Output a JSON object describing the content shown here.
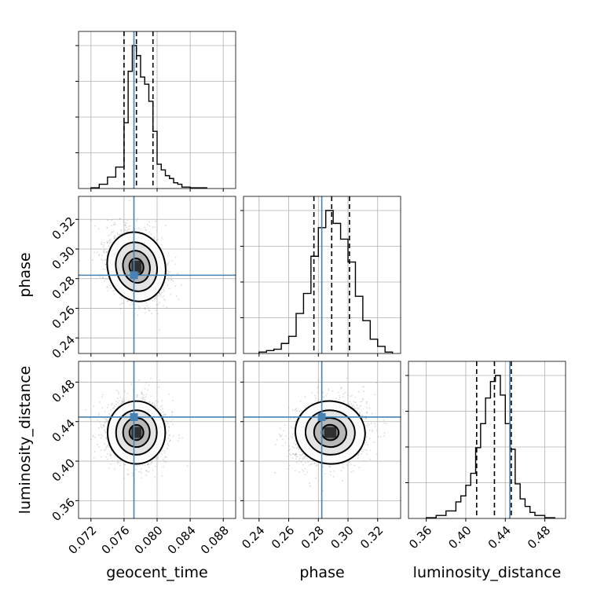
{
  "chart_data": {
    "type": "corner",
    "parameters": [
      "geocent_time",
      "phase",
      "luminosity_distance"
    ],
    "labels": {
      "geocent_time": "geocent_time",
      "phase": "phase",
      "luminosity_distance": "luminosity_distance"
    },
    "ranges": {
      "geocent_time": [
        0.0705,
        0.0895
      ],
      "phase": [
        0.2295,
        0.3355
      ],
      "luminosity_distance": [
        0.342,
        0.501
      ]
    },
    "ticks": {
      "geocent_time": {
        "values": [
          0.072,
          0.076,
          0.08,
          0.084,
          0.088
        ],
        "labels": [
          "0.072",
          "0.076",
          "0.080",
          "0.084",
          "0.088"
        ]
      },
      "phase": {
        "values": [
          0.24,
          0.26,
          0.28,
          0.3,
          0.32
        ],
        "labels": [
          "0.24",
          "0.26",
          "0.28",
          "0.30",
          "0.32"
        ]
      },
      "luminosity_distance": {
        "values": [
          0.36,
          0.4,
          0.44,
          0.48
        ],
        "labels": [
          "0.36",
          "0.40",
          "0.44",
          "0.48"
        ]
      }
    },
    "truths": {
      "geocent_time": 0.0772,
      "phase": 0.2823,
      "luminosity_distance": 0.4446
    },
    "quantiles": {
      "geocent_time": [
        0.076,
        0.0775,
        0.0795
      ],
      "phase": [
        0.277,
        0.289,
        0.301
      ],
      "luminosity_distance": [
        0.411,
        0.429,
        0.446
      ]
    },
    "histograms": {
      "geocent_time": {
        "bin_edges": [
          0.072,
          0.073,
          0.074,
          0.075,
          0.076,
          0.0765,
          0.077,
          0.0775,
          0.078,
          0.0785,
          0.079,
          0.0795,
          0.08,
          0.0805,
          0.081,
          0.0815,
          0.082,
          0.0825,
          0.083,
          0.084,
          0.086
        ],
        "counts": [
          0.5,
          3,
          8,
          15,
          46,
          82,
          100,
          93,
          78,
          73,
          61,
          40,
          17,
          13,
          9,
          7,
          4,
          3,
          1,
          0.5
        ]
      },
      "phase": {
        "bin_edges": [
          0.24,
          0.245,
          0.25,
          0.255,
          0.26,
          0.265,
          0.27,
          0.275,
          0.28,
          0.285,
          0.29,
          0.295,
          0.3,
          0.305,
          0.31,
          0.315,
          0.32,
          0.325,
          0.33
        ],
        "counts": [
          1,
          2,
          3,
          7,
          12,
          28,
          42,
          68,
          88,
          100,
          91,
          80,
          64,
          40,
          23,
          10,
          5,
          1
        ]
      },
      "luminosity_distance": {
        "bin_edges": [
          0.36,
          0.37,
          0.38,
          0.39,
          0.395,
          0.4,
          0.405,
          0.41,
          0.415,
          0.42,
          0.425,
          0.43,
          0.435,
          0.44,
          0.445,
          0.45,
          0.455,
          0.46,
          0.465,
          0.47,
          0.48,
          0.49
        ],
        "counts": [
          0.5,
          2,
          5,
          11,
          15,
          22,
          30,
          47,
          63,
          80,
          91,
          95,
          82,
          63,
          46,
          23,
          13,
          8,
          4,
          2,
          0.5
        ]
      }
    },
    "contour_levels": [
      "0.5-sigma",
      "1-sigma",
      "1.5-sigma",
      "2-sigma"
    ],
    "scatter": true,
    "grid": true
  }
}
